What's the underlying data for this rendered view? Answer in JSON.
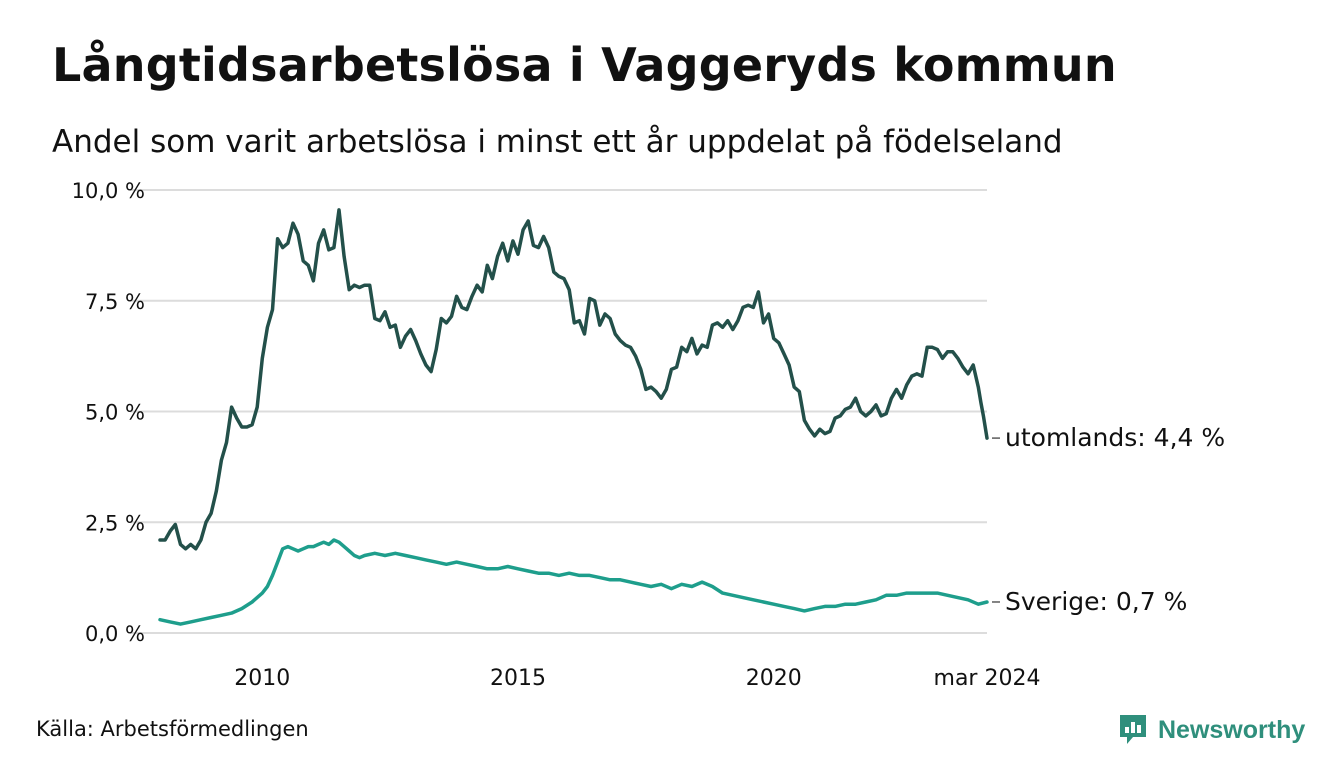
{
  "header": {
    "title": "Långtidsarbetslösa i Vaggeryds kommun",
    "subtitle": "Andel som varit arbetslösa i minst ett år uppdelat på födelseland"
  },
  "footer": {
    "source": "Källa: Arbetsförmedlingen",
    "brand": "Newsworthy"
  },
  "colors": {
    "utomlands": "#23504a",
    "sverige": "#1e9e8c",
    "grid": "#dcdcdc",
    "brand": "#2f8f7c"
  },
  "chart_data": {
    "type": "line",
    "title": "Långtidsarbetslösa i Vaggeryds kommun",
    "subtitle": "Andel som varit arbetslösa i minst ett år uppdelat på födelseland",
    "xlabel": "",
    "ylabel": "",
    "ylim": [
      0,
      10
    ],
    "xlim": [
      2008.0,
      2024.17
    ],
    "grid": true,
    "y_ticks": [
      {
        "value": 0,
        "label": "0,0 %"
      },
      {
        "value": 2.5,
        "label": "2,5 %"
      },
      {
        "value": 5,
        "label": "5,0 %"
      },
      {
        "value": 7.5,
        "label": "7,5 %"
      },
      {
        "value": 10,
        "label": "10,0 %"
      }
    ],
    "x_ticks": [
      {
        "value": 2010,
        "label": "2010"
      },
      {
        "value": 2015,
        "label": "2015"
      },
      {
        "value": 2020,
        "label": "2020"
      },
      {
        "value": 2024.17,
        "label": "mar 2024"
      }
    ],
    "series": [
      {
        "name": "utomlands",
        "end_label": "utomlands: 4,4 %",
        "points": [
          [
            2008.0,
            2.1
          ],
          [
            2008.1,
            2.1
          ],
          [
            2008.2,
            2.3
          ],
          [
            2008.3,
            2.45
          ],
          [
            2008.4,
            2.0
          ],
          [
            2008.5,
            1.9
          ],
          [
            2008.6,
            2.0
          ],
          [
            2008.7,
            1.9
          ],
          [
            2008.8,
            2.1
          ],
          [
            2008.9,
            2.5
          ],
          [
            2009.0,
            2.7
          ],
          [
            2009.1,
            3.2
          ],
          [
            2009.2,
            3.9
          ],
          [
            2009.3,
            4.3
          ],
          [
            2009.4,
            5.1
          ],
          [
            2009.5,
            4.85
          ],
          [
            2009.6,
            4.65
          ],
          [
            2009.7,
            4.65
          ],
          [
            2009.8,
            4.7
          ],
          [
            2009.9,
            5.1
          ],
          [
            2010.0,
            6.2
          ],
          [
            2010.1,
            6.9
          ],
          [
            2010.2,
            7.3
          ],
          [
            2010.3,
            8.9
          ],
          [
            2010.4,
            8.7
          ],
          [
            2010.5,
            8.8
          ],
          [
            2010.6,
            9.25
          ],
          [
            2010.7,
            9.0
          ],
          [
            2010.8,
            8.4
          ],
          [
            2010.9,
            8.3
          ],
          [
            2011.0,
            7.95
          ],
          [
            2011.1,
            8.8
          ],
          [
            2011.2,
            9.1
          ],
          [
            2011.3,
            8.65
          ],
          [
            2011.4,
            8.7
          ],
          [
            2011.5,
            9.55
          ],
          [
            2011.6,
            8.5
          ],
          [
            2011.7,
            7.75
          ],
          [
            2011.8,
            7.85
          ],
          [
            2011.9,
            7.8
          ],
          [
            2012.0,
            7.85
          ],
          [
            2012.1,
            7.85
          ],
          [
            2012.2,
            7.1
          ],
          [
            2012.3,
            7.05
          ],
          [
            2012.4,
            7.25
          ],
          [
            2012.5,
            6.9
          ],
          [
            2012.6,
            6.95
          ],
          [
            2012.7,
            6.45
          ],
          [
            2012.8,
            6.7
          ],
          [
            2012.9,
            6.85
          ],
          [
            2013.0,
            6.6
          ],
          [
            2013.1,
            6.3
          ],
          [
            2013.2,
            6.05
          ],
          [
            2013.3,
            5.9
          ],
          [
            2013.4,
            6.4
          ],
          [
            2013.5,
            7.1
          ],
          [
            2013.6,
            7.0
          ],
          [
            2013.7,
            7.15
          ],
          [
            2013.8,
            7.6
          ],
          [
            2013.9,
            7.35
          ],
          [
            2014.0,
            7.3
          ],
          [
            2014.1,
            7.6
          ],
          [
            2014.2,
            7.85
          ],
          [
            2014.3,
            7.7
          ],
          [
            2014.4,
            8.3
          ],
          [
            2014.5,
            8.0
          ],
          [
            2014.6,
            8.5
          ],
          [
            2014.7,
            8.8
          ],
          [
            2014.8,
            8.4
          ],
          [
            2014.9,
            8.85
          ],
          [
            2015.0,
            8.55
          ],
          [
            2015.1,
            9.1
          ],
          [
            2015.2,
            9.3
          ],
          [
            2015.3,
            8.75
          ],
          [
            2015.4,
            8.7
          ],
          [
            2015.5,
            8.95
          ],
          [
            2015.6,
            8.7
          ],
          [
            2015.7,
            8.15
          ],
          [
            2015.8,
            8.05
          ],
          [
            2015.9,
            8.0
          ],
          [
            2016.0,
            7.75
          ],
          [
            2016.1,
            7.0
          ],
          [
            2016.2,
            7.05
          ],
          [
            2016.3,
            6.75
          ],
          [
            2016.4,
            7.55
          ],
          [
            2016.5,
            7.5
          ],
          [
            2016.6,
            6.95
          ],
          [
            2016.7,
            7.2
          ],
          [
            2016.8,
            7.1
          ],
          [
            2016.9,
            6.75
          ],
          [
            2017.0,
            6.6
          ],
          [
            2017.1,
            6.5
          ],
          [
            2017.2,
            6.45
          ],
          [
            2017.3,
            6.25
          ],
          [
            2017.4,
            5.95
          ],
          [
            2017.5,
            5.5
          ],
          [
            2017.6,
            5.55
          ],
          [
            2017.7,
            5.45
          ],
          [
            2017.8,
            5.3
          ],
          [
            2017.9,
            5.5
          ],
          [
            2018.0,
            5.95
          ],
          [
            2018.1,
            6.0
          ],
          [
            2018.2,
            6.45
          ],
          [
            2018.3,
            6.35
          ],
          [
            2018.4,
            6.65
          ],
          [
            2018.5,
            6.3
          ],
          [
            2018.6,
            6.5
          ],
          [
            2018.7,
            6.45
          ],
          [
            2018.8,
            6.95
          ],
          [
            2018.9,
            7.0
          ],
          [
            2019.0,
            6.9
          ],
          [
            2019.1,
            7.05
          ],
          [
            2019.2,
            6.85
          ],
          [
            2019.3,
            7.05
          ],
          [
            2019.4,
            7.35
          ],
          [
            2019.5,
            7.4
          ],
          [
            2019.6,
            7.35
          ],
          [
            2019.7,
            7.7
          ],
          [
            2019.8,
            7.0
          ],
          [
            2019.9,
            7.2
          ],
          [
            2020.0,
            6.65
          ],
          [
            2020.1,
            6.55
          ],
          [
            2020.2,
            6.3
          ],
          [
            2020.3,
            6.05
          ],
          [
            2020.4,
            5.55
          ],
          [
            2020.5,
            5.45
          ],
          [
            2020.6,
            4.8
          ],
          [
            2020.7,
            4.6
          ],
          [
            2020.8,
            4.45
          ],
          [
            2020.9,
            4.6
          ],
          [
            2021.0,
            4.5
          ],
          [
            2021.1,
            4.55
          ],
          [
            2021.2,
            4.85
          ],
          [
            2021.3,
            4.9
          ],
          [
            2021.4,
            5.05
          ],
          [
            2021.5,
            5.1
          ],
          [
            2021.6,
            5.3
          ],
          [
            2021.7,
            5.0
          ],
          [
            2021.8,
            4.9
          ],
          [
            2021.9,
            5.0
          ],
          [
            2022.0,
            5.15
          ],
          [
            2022.1,
            4.9
          ],
          [
            2022.2,
            4.95
          ],
          [
            2022.3,
            5.3
          ],
          [
            2022.4,
            5.5
          ],
          [
            2022.5,
            5.3
          ],
          [
            2022.6,
            5.6
          ],
          [
            2022.7,
            5.8
          ],
          [
            2022.8,
            5.85
          ],
          [
            2022.9,
            5.8
          ],
          [
            2023.0,
            6.45
          ],
          [
            2023.1,
            6.45
          ],
          [
            2023.2,
            6.4
          ],
          [
            2023.3,
            6.2
          ],
          [
            2023.4,
            6.35
          ],
          [
            2023.5,
            6.35
          ],
          [
            2023.6,
            6.2
          ],
          [
            2023.7,
            6.0
          ],
          [
            2023.8,
            5.85
          ],
          [
            2023.9,
            6.05
          ],
          [
            2024.0,
            5.55
          ],
          [
            2024.05,
            5.2
          ],
          [
            2024.1,
            4.9
          ],
          [
            2024.17,
            4.4
          ]
        ]
      },
      {
        "name": "Sverige",
        "end_label": "Sverige: 0,7 %",
        "points": [
          [
            2008.0,
            0.3
          ],
          [
            2008.2,
            0.25
          ],
          [
            2008.4,
            0.2
          ],
          [
            2008.6,
            0.25
          ],
          [
            2008.8,
            0.3
          ],
          [
            2009.0,
            0.35
          ],
          [
            2009.2,
            0.4
          ],
          [
            2009.4,
            0.45
          ],
          [
            2009.6,
            0.55
          ],
          [
            2009.8,
            0.7
          ],
          [
            2010.0,
            0.9
          ],
          [
            2010.1,
            1.05
          ],
          [
            2010.2,
            1.3
          ],
          [
            2010.3,
            1.6
          ],
          [
            2010.4,
            1.9
          ],
          [
            2010.5,
            1.95
          ],
          [
            2010.6,
            1.9
          ],
          [
            2010.7,
            1.85
          ],
          [
            2010.8,
            1.9
          ],
          [
            2010.9,
            1.95
          ],
          [
            2011.0,
            1.95
          ],
          [
            2011.1,
            2.0
          ],
          [
            2011.2,
            2.05
          ],
          [
            2011.3,
            2.0
          ],
          [
            2011.4,
            2.1
          ],
          [
            2011.5,
            2.05
          ],
          [
            2011.6,
            1.95
          ],
          [
            2011.7,
            1.85
          ],
          [
            2011.8,
            1.75
          ],
          [
            2011.9,
            1.7
          ],
          [
            2012.0,
            1.75
          ],
          [
            2012.2,
            1.8
          ],
          [
            2012.4,
            1.75
          ],
          [
            2012.6,
            1.8
          ],
          [
            2012.8,
            1.75
          ],
          [
            2013.0,
            1.7
          ],
          [
            2013.2,
            1.65
          ],
          [
            2013.4,
            1.6
          ],
          [
            2013.6,
            1.55
          ],
          [
            2013.8,
            1.6
          ],
          [
            2014.0,
            1.55
          ],
          [
            2014.2,
            1.5
          ],
          [
            2014.4,
            1.45
          ],
          [
            2014.6,
            1.45
          ],
          [
            2014.8,
            1.5
          ],
          [
            2015.0,
            1.45
          ],
          [
            2015.2,
            1.4
          ],
          [
            2015.4,
            1.35
          ],
          [
            2015.6,
            1.35
          ],
          [
            2015.8,
            1.3
          ],
          [
            2016.0,
            1.35
          ],
          [
            2016.2,
            1.3
          ],
          [
            2016.4,
            1.3
          ],
          [
            2016.6,
            1.25
          ],
          [
            2016.8,
            1.2
          ],
          [
            2017.0,
            1.2
          ],
          [
            2017.2,
            1.15
          ],
          [
            2017.4,
            1.1
          ],
          [
            2017.6,
            1.05
          ],
          [
            2017.8,
            1.1
          ],
          [
            2018.0,
            1.0
          ],
          [
            2018.2,
            1.1
          ],
          [
            2018.4,
            1.05
          ],
          [
            2018.6,
            1.15
          ],
          [
            2018.8,
            1.05
          ],
          [
            2019.0,
            0.9
          ],
          [
            2019.2,
            0.85
          ],
          [
            2019.4,
            0.8
          ],
          [
            2019.6,
            0.75
          ],
          [
            2019.8,
            0.7
          ],
          [
            2020.0,
            0.65
          ],
          [
            2020.2,
            0.6
          ],
          [
            2020.4,
            0.55
          ],
          [
            2020.6,
            0.5
          ],
          [
            2020.8,
            0.55
          ],
          [
            2021.0,
            0.6
          ],
          [
            2021.2,
            0.6
          ],
          [
            2021.4,
            0.65
          ],
          [
            2021.6,
            0.65
          ],
          [
            2021.8,
            0.7
          ],
          [
            2022.0,
            0.75
          ],
          [
            2022.2,
            0.85
          ],
          [
            2022.4,
            0.85
          ],
          [
            2022.6,
            0.9
          ],
          [
            2022.8,
            0.9
          ],
          [
            2023.0,
            0.9
          ],
          [
            2023.2,
            0.9
          ],
          [
            2023.4,
            0.85
          ],
          [
            2023.6,
            0.8
          ],
          [
            2023.8,
            0.75
          ],
          [
            2024.0,
            0.65
          ],
          [
            2024.17,
            0.7
          ]
        ]
      }
    ]
  }
}
